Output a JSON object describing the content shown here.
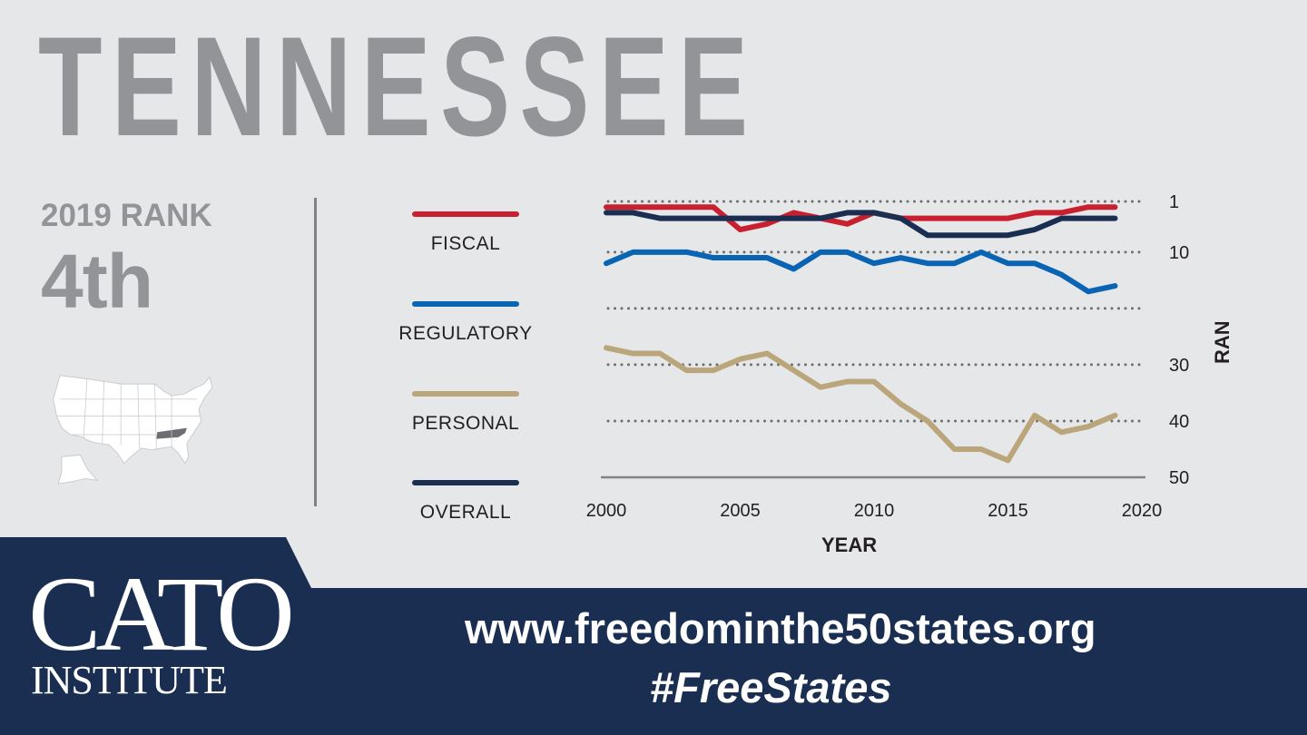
{
  "header": {
    "title": "TENNESSEE",
    "rank_label": "2019 RANK",
    "rank_value": "4th"
  },
  "map": {
    "highlight_color": "#6d6e71",
    "state_color": "#ffffff"
  },
  "legend": [
    {
      "label": "FISCAL",
      "color": "#c8202f"
    },
    {
      "label": "REGULATORY",
      "color": "#0a64b4"
    },
    {
      "label": "PERSONAL",
      "color": "#bba57a"
    },
    {
      "label": "OVERALL",
      "color": "#1a2e52"
    }
  ],
  "chart_data": {
    "type": "line",
    "xlabel": "YEAR",
    "ylabel": "RANK",
    "xlim": [
      2000,
      2020
    ],
    "ylim": [
      1,
      50
    ],
    "y_inverted": true,
    "grid": "dotted horizontal",
    "x_ticks": [
      "2000",
      "2005",
      "2010",
      "2015",
      "2020"
    ],
    "y_ticks": [
      {
        "value": 1,
        "label": "1"
      },
      {
        "value": 10,
        "label": "10"
      },
      {
        "value": 20,
        "label": ""
      },
      {
        "value": 30,
        "label": "30"
      },
      {
        "value": 40,
        "label": "40"
      },
      {
        "value": 50,
        "label": "50"
      }
    ],
    "x": [
      2000,
      2001,
      2002,
      2003,
      2004,
      2005,
      2006,
      2007,
      2008,
      2009,
      2010,
      2011,
      2012,
      2013,
      2014,
      2015,
      2016,
      2017,
      2018,
      2019
    ],
    "series": [
      {
        "name": "FISCAL",
        "color": "#c8202f",
        "values": [
          2,
          2,
          2,
          2,
          2,
          6,
          5,
          3,
          4,
          5,
          3,
          4,
          4,
          4,
          4,
          4,
          3,
          3,
          2,
          2
        ]
      },
      {
        "name": "REGULATORY",
        "color": "#0a64b4",
        "values": [
          12,
          10,
          10,
          10,
          11,
          11,
          11,
          13,
          10,
          10,
          12,
          11,
          12,
          12,
          10,
          12,
          12,
          14,
          17,
          16
        ]
      },
      {
        "name": "PERSONAL",
        "color": "#bba57a",
        "values": [
          27,
          28,
          28,
          31,
          31,
          29,
          28,
          31,
          34,
          33,
          33,
          37,
          40,
          45,
          45,
          47,
          39,
          42,
          41,
          39
        ]
      },
      {
        "name": "OVERALL",
        "color": "#1a2e52",
        "values": [
          3,
          3,
          4,
          4,
          4,
          4,
          4,
          4,
          4,
          3,
          3,
          4,
          7,
          7,
          7,
          7,
          6,
          4,
          4,
          4
        ]
      }
    ]
  },
  "footer": {
    "logo_top": "CATO",
    "logo_bottom": "INSTITUTE",
    "url": "www.freedominthe50states.org",
    "hashtag": "#FreeStates"
  }
}
